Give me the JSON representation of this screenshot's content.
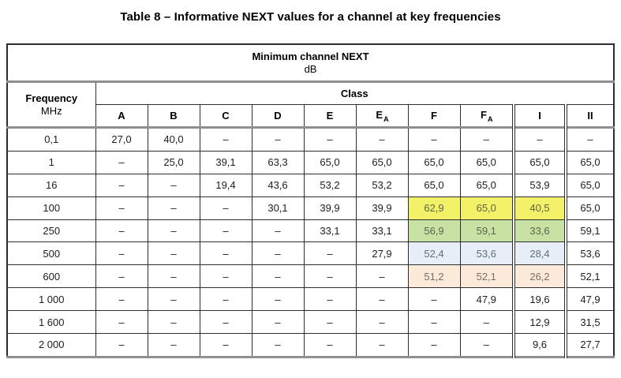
{
  "title": "Table 8 – Informative NEXT values for a channel at key frequencies",
  "table": {
    "header": {
      "top": "Minimum channel NEXT",
      "unit": "dB",
      "frequency_label": "Frequency",
      "frequency_unit": "MHz",
      "class_label": "Class",
      "classes": [
        {
          "label": "A",
          "sub": ""
        },
        {
          "label": "B",
          "sub": ""
        },
        {
          "label": "C",
          "sub": ""
        },
        {
          "label": "D",
          "sub": ""
        },
        {
          "label": "E",
          "sub": ""
        },
        {
          "label": "E",
          "sub": "A"
        },
        {
          "label": "F",
          "sub": ""
        },
        {
          "label": "F",
          "sub": "A"
        },
        {
          "label": "I",
          "sub": ""
        },
        {
          "label": "II",
          "sub": ""
        }
      ]
    },
    "highlight_colors": {
      "yellow": {
        "bg": "#f3f168",
        "text": "#63634d"
      },
      "green": {
        "bg": "#c8e2a3",
        "text": "#5b654f"
      },
      "blue": {
        "bg": "#e8eef8",
        "text": "#626e80"
      },
      "orange": {
        "bg": "#fbe9d9",
        "text": "#767069"
      }
    },
    "rows": [
      {
        "frequency": "0,1",
        "values": [
          "27,0",
          "40,0",
          "–",
          "–",
          "–",
          "–",
          "–",
          "–",
          "–",
          "–"
        ],
        "highlight": null
      },
      {
        "frequency": "1",
        "values": [
          "–",
          "25,0",
          "39,1",
          "63,3",
          "65,0",
          "65,0",
          "65,0",
          "65,0",
          "65,0",
          "65,0"
        ],
        "highlight": null
      },
      {
        "frequency": "16",
        "values": [
          "–",
          "–",
          "19,4",
          "43,6",
          "53,2",
          "53,2",
          "65,0",
          "65,0",
          "53,9",
          "65,0"
        ],
        "highlight": null
      },
      {
        "frequency": "100",
        "values": [
          "–",
          "–",
          "–",
          "30,1",
          "39,9",
          "39,9",
          "62,9",
          "65,0",
          "40,5",
          "65,0"
        ],
        "highlight": {
          "color": "yellow",
          "columns": [
            6,
            7,
            8
          ]
        }
      },
      {
        "frequency": "250",
        "values": [
          "–",
          "–",
          "–",
          "–",
          "33,1",
          "33,1",
          "56,9",
          "59,1",
          "33,6",
          "59,1"
        ],
        "highlight": {
          "color": "green",
          "columns": [
            6,
            7,
            8
          ]
        }
      },
      {
        "frequency": "500",
        "values": [
          "–",
          "–",
          "–",
          "–",
          "–",
          "27,9",
          "52,4",
          "53,6",
          "28,4",
          "53,6"
        ],
        "highlight": {
          "color": "blue",
          "columns": [
            6,
            7,
            8
          ]
        }
      },
      {
        "frequency": "600",
        "values": [
          "–",
          "–",
          "–",
          "–",
          "–",
          "–",
          "51,2",
          "52,1",
          "26,2",
          "52,1"
        ],
        "highlight": {
          "color": "orange",
          "columns": [
            6,
            7,
            8
          ]
        }
      },
      {
        "frequency": "1 000",
        "values": [
          "–",
          "–",
          "–",
          "–",
          "–",
          "–",
          "–",
          "47,9",
          "19,6",
          "47,9"
        ],
        "highlight": null
      },
      {
        "frequency": "1 600",
        "values": [
          "–",
          "–",
          "–",
          "–",
          "–",
          "–",
          "–",
          "–",
          "12,9",
          "31,5"
        ],
        "highlight": null
      },
      {
        "frequency": "2 000",
        "values": [
          "–",
          "–",
          "–",
          "–",
          "–",
          "–",
          "–",
          "–",
          "9,6",
          "27,7"
        ],
        "highlight": null
      }
    ]
  }
}
